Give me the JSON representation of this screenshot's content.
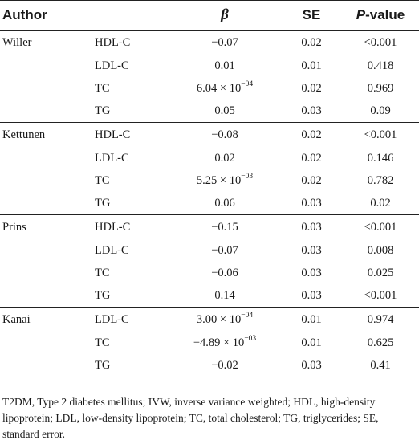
{
  "table": {
    "headers": {
      "author": "Author",
      "beta": "β",
      "se": "SE",
      "p_italic": "P",
      "p_rest": "-value"
    },
    "rows": [
      {
        "author": "Willer",
        "lipid": "HDL-C",
        "beta": "−0.07",
        "beta_exp": "",
        "se": "0.02",
        "p": "<0.001"
      },
      {
        "author": "",
        "lipid": "LDL-C",
        "beta": "0.01",
        "beta_exp": "",
        "se": "0.01",
        "p": "0.418"
      },
      {
        "author": "",
        "lipid": "TC",
        "beta": "6.04 × 10",
        "beta_exp": "−04",
        "se": "0.02",
        "p": "0.969"
      },
      {
        "author": "",
        "lipid": "TG",
        "beta": "0.05",
        "beta_exp": "",
        "se": "0.03",
        "p": "0.09"
      },
      {
        "author": "Kettunen",
        "lipid": "HDL-C",
        "beta": "−0.08",
        "beta_exp": "",
        "se": "0.02",
        "p": "<0.001"
      },
      {
        "author": "",
        "lipid": "LDL-C",
        "beta": "0.02",
        "beta_exp": "",
        "se": "0.02",
        "p": "0.146"
      },
      {
        "author": "",
        "lipid": "TC",
        "beta": "5.25 × 10",
        "beta_exp": "−03",
        "se": "0.02",
        "p": "0.782"
      },
      {
        "author": "",
        "lipid": "TG",
        "beta": "0.06",
        "beta_exp": "",
        "se": "0.03",
        "p": "0.02"
      },
      {
        "author": "Prins",
        "lipid": "HDL-C",
        "beta": "−0.15",
        "beta_exp": "",
        "se": "0.03",
        "p": "<0.001"
      },
      {
        "author": "",
        "lipid": "LDL-C",
        "beta": "−0.07",
        "beta_exp": "",
        "se": "0.03",
        "p": "0.008"
      },
      {
        "author": "",
        "lipid": "TC",
        "beta": "−0.06",
        "beta_exp": "",
        "se": "0.03",
        "p": "0.025"
      },
      {
        "author": "",
        "lipid": "TG",
        "beta": "0.14",
        "beta_exp": "",
        "se": "0.03",
        "p": "<0.001"
      },
      {
        "author": "Kanai",
        "lipid": "LDL-C",
        "beta": "3.00 × 10",
        "beta_exp": "−04",
        "se": "0.01",
        "p": "0.974"
      },
      {
        "author": "",
        "lipid": "TC",
        "beta": "−4.89 × 10",
        "beta_exp": "−03",
        "se": "0.01",
        "p": "0.625"
      },
      {
        "author": "",
        "lipid": "TG",
        "beta": "−0.02",
        "beta_exp": "",
        "se": "0.03",
        "p": "0.41"
      }
    ]
  },
  "footnote": "T2DM, Type 2 diabetes mellitus; IVW, inverse variance weighted; HDL, high-density lipoprotein; LDL, low-density lipoprotein; TC, total cholesterol; TG, triglycerides; SE, standard error."
}
